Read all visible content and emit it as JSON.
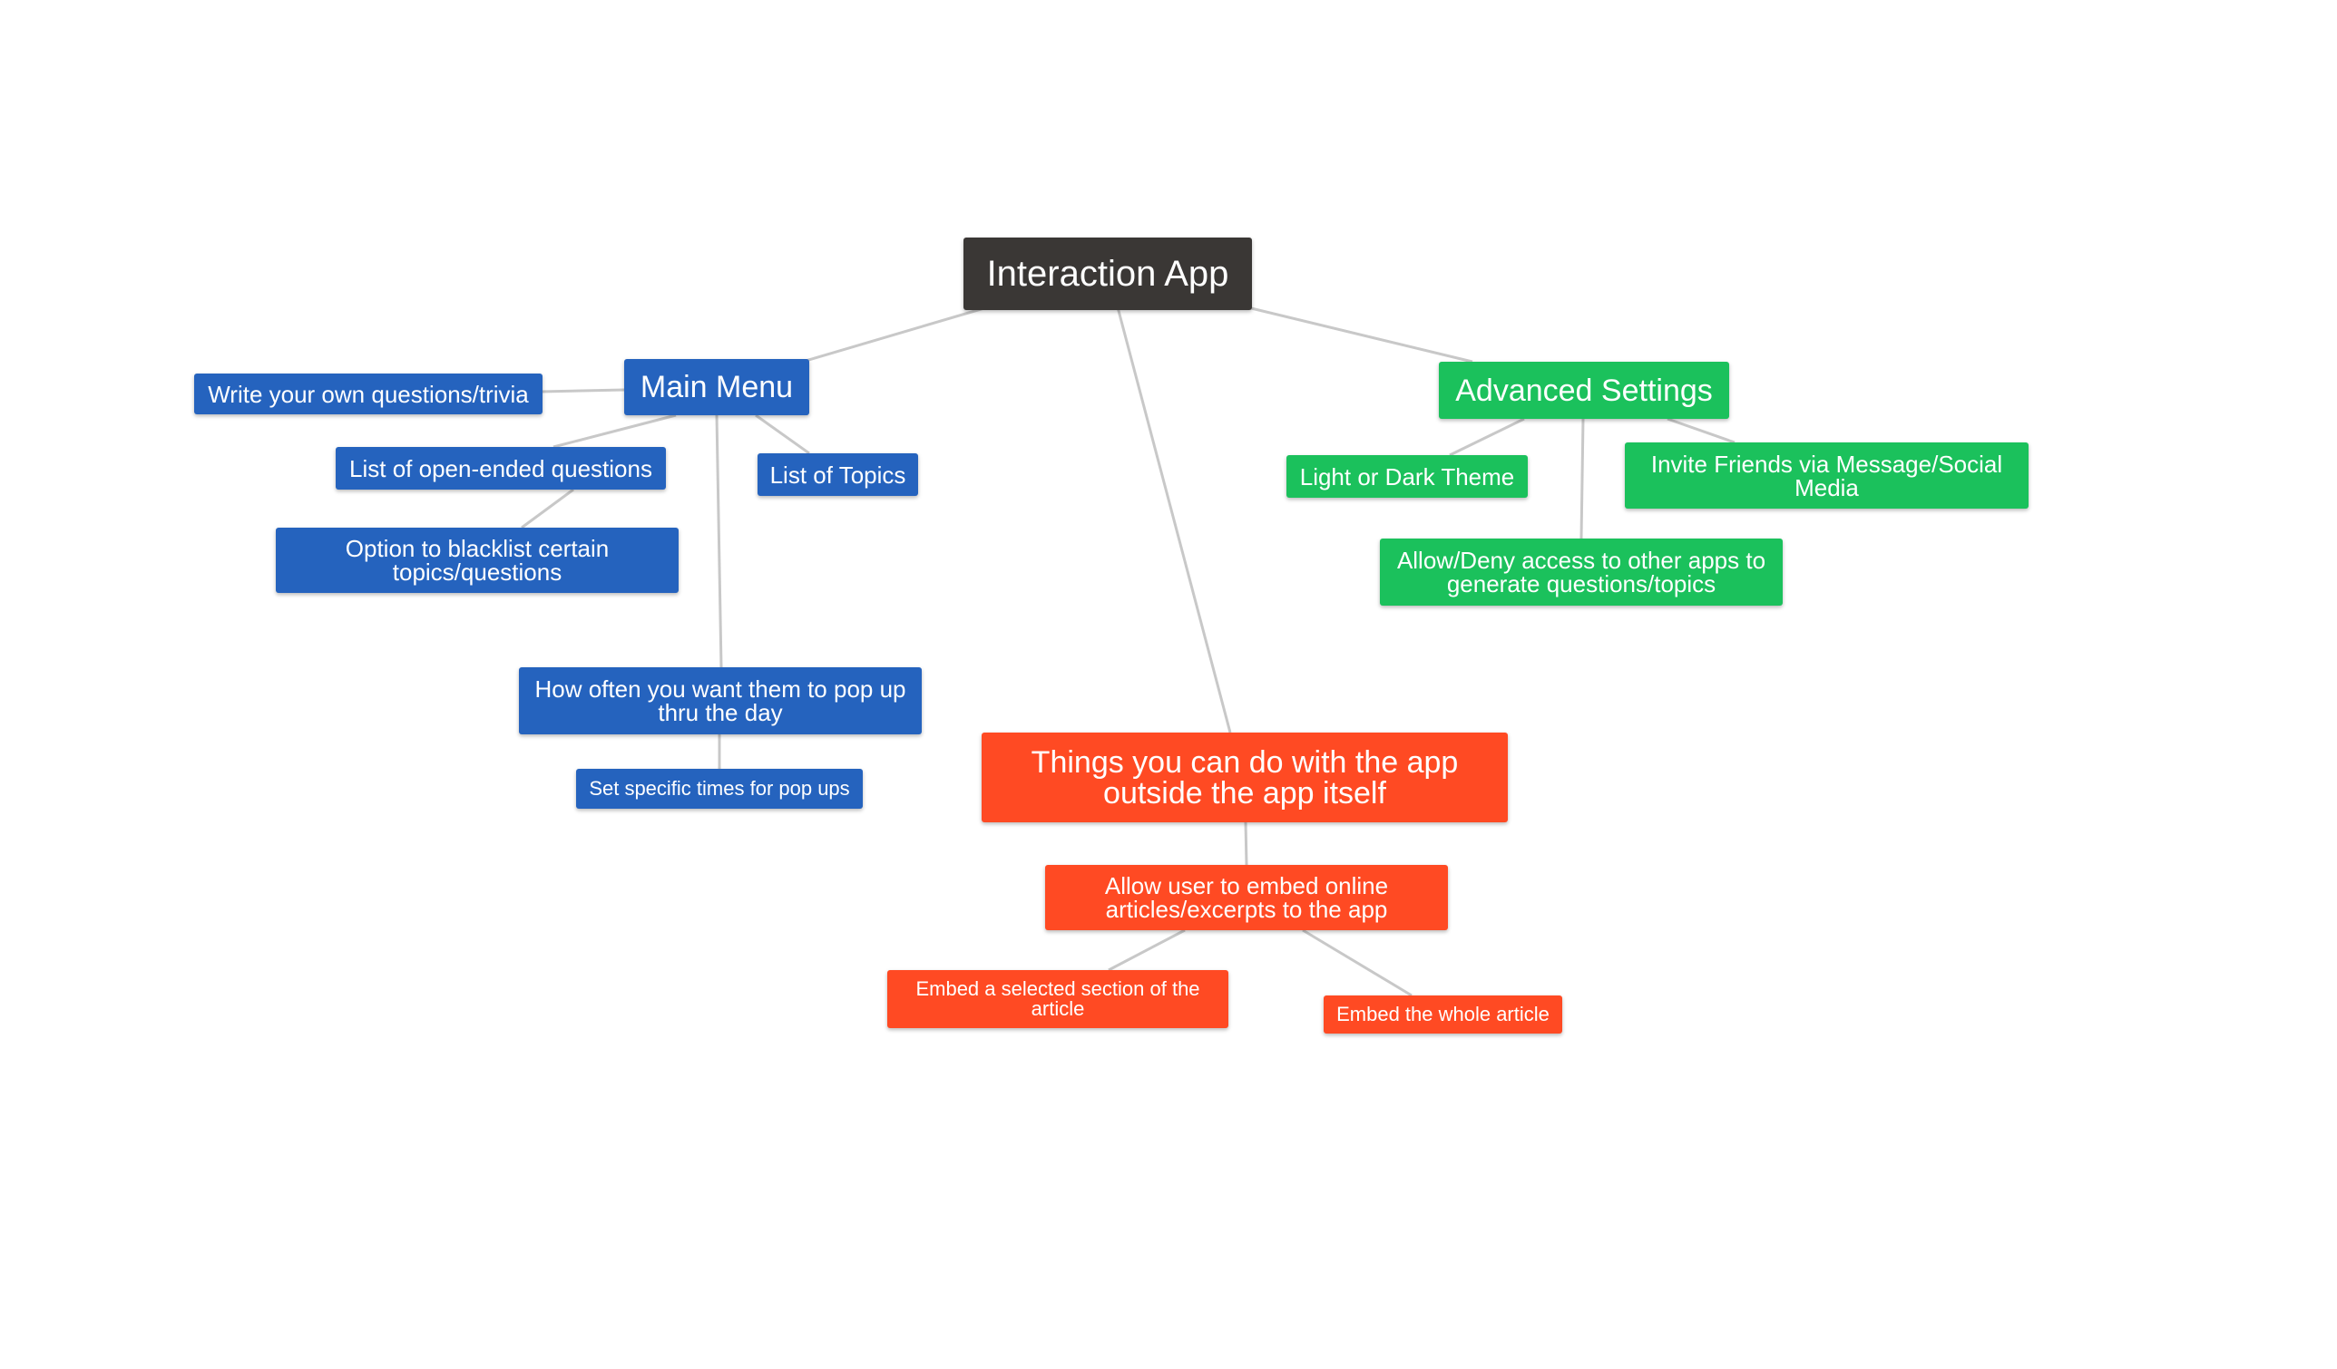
{
  "colors": {
    "root": "#3a3735",
    "main_menu": "#2563be",
    "advanced_settings": "#1bc15c",
    "outside_app": "#ff4a23",
    "link": "#c8c8c8",
    "background": "#ffffff"
  },
  "nodes": {
    "root": "Interaction App",
    "main_menu": "Main Menu",
    "write_own": "Write your own questions/trivia",
    "open_ended": "List of open-ended questions",
    "blacklist": "Option to blacklist certain topics/questions",
    "list_topics": "List of Topics",
    "how_often": "How often you want them to pop up thru the day",
    "specific_times": "Set specific times for pop ups",
    "advanced_settings": "Advanced Settings",
    "theme": "Light or Dark Theme",
    "invite": "Invite Friends via Message/Social Media",
    "allow_deny": "Allow/Deny access to other apps to generate questions/topics",
    "outside_app": "Things you can do with the app outside the app itself",
    "embed_online": "Allow user to embed online articles/excerpts to the app",
    "embed_section": "Embed a selected section of the article",
    "embed_whole": "Embed the whole article"
  }
}
